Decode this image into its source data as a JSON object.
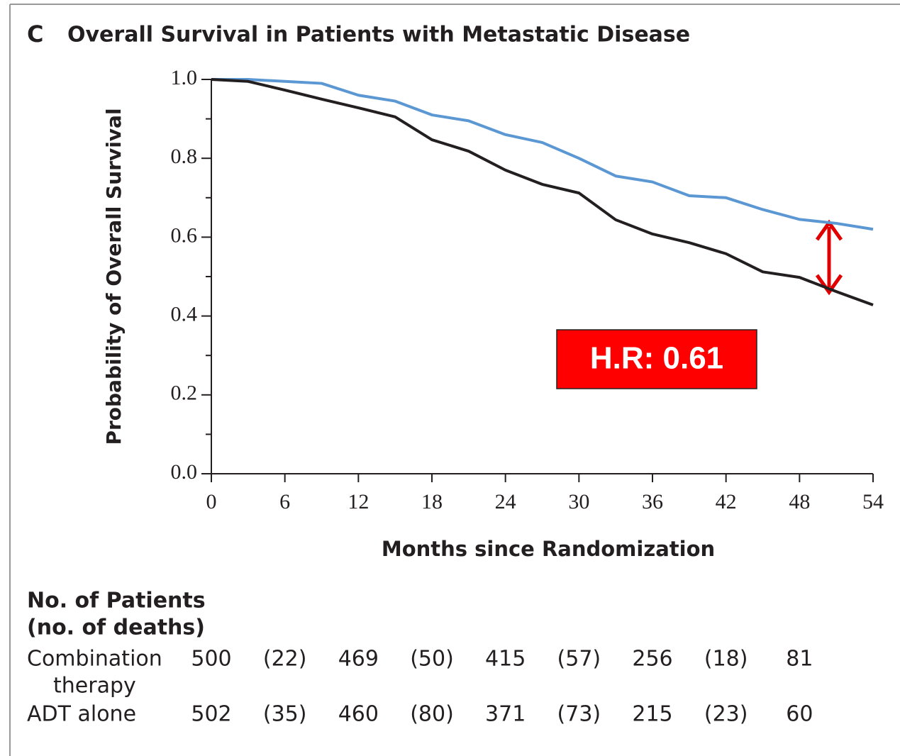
{
  "chart_data": {
    "type": "line",
    "panel": "C",
    "title": "Overall Survival in Patients with Metastatic Disease",
    "y_label": "Probability of Overall Survival",
    "x_label": "Months since Randomization",
    "x": [
      0,
      3,
      6,
      9,
      12,
      15,
      18,
      21,
      24,
      27,
      30,
      33,
      36,
      39,
      42,
      45,
      48,
      51,
      54
    ],
    "series": [
      {
        "name": "Combination therapy",
        "color": "#5b97d3",
        "values": [
          1.0,
          1.0,
          0.995,
          0.99,
          0.96,
          0.945,
          0.91,
          0.895,
          0.86,
          0.84,
          0.8,
          0.755,
          0.74,
          0.705,
          0.7,
          0.67,
          0.645,
          0.635,
          0.62
        ]
      },
      {
        "name": "ADT alone",
        "color": "#231f20",
        "values": [
          1.0,
          0.995,
          0.973,
          0.95,
          0.928,
          0.905,
          0.847,
          0.818,
          0.77,
          0.734,
          0.712,
          0.644,
          0.608,
          0.586,
          0.558,
          0.512,
          0.498,
          0.462,
          0.428
        ]
      }
    ],
    "xlim": [
      0,
      54
    ],
    "xticks": [
      0,
      6,
      12,
      18,
      24,
      30,
      36,
      42,
      48,
      54
    ],
    "ylim": [
      0,
      1
    ],
    "yticks": [
      {
        "value": 0,
        "label": "0.0"
      },
      {
        "value": 0.2,
        "label": "0.2"
      },
      {
        "value": 0.4,
        "label": "0.4"
      },
      {
        "value": 0.6,
        "label": "0.6"
      },
      {
        "value": 0.8,
        "label": "0.8"
      },
      {
        "value": 1,
        "label": "1.0"
      }
    ],
    "yminorticks": [
      0.1,
      0.3,
      0.5,
      0.7,
      0.9
    ],
    "annotation": "H.R: 0.61",
    "risk_table": {
      "title": [
        "No. of Patients",
        "(no. of deaths)"
      ],
      "rows": [
        {
          "label": [
            "Combination",
            "therapy"
          ],
          "cells": [
            "500",
            "(22)",
            "469",
            "(50)",
            "415",
            "(57)",
            "256",
            "(18)",
            "81"
          ]
        },
        {
          "label": [
            "ADT alone"
          ],
          "cells": [
            "502",
            "(35)",
            "460",
            "(80)",
            "371",
            "(73)",
            "215",
            "(23)",
            "60"
          ]
        }
      ]
    }
  }
}
